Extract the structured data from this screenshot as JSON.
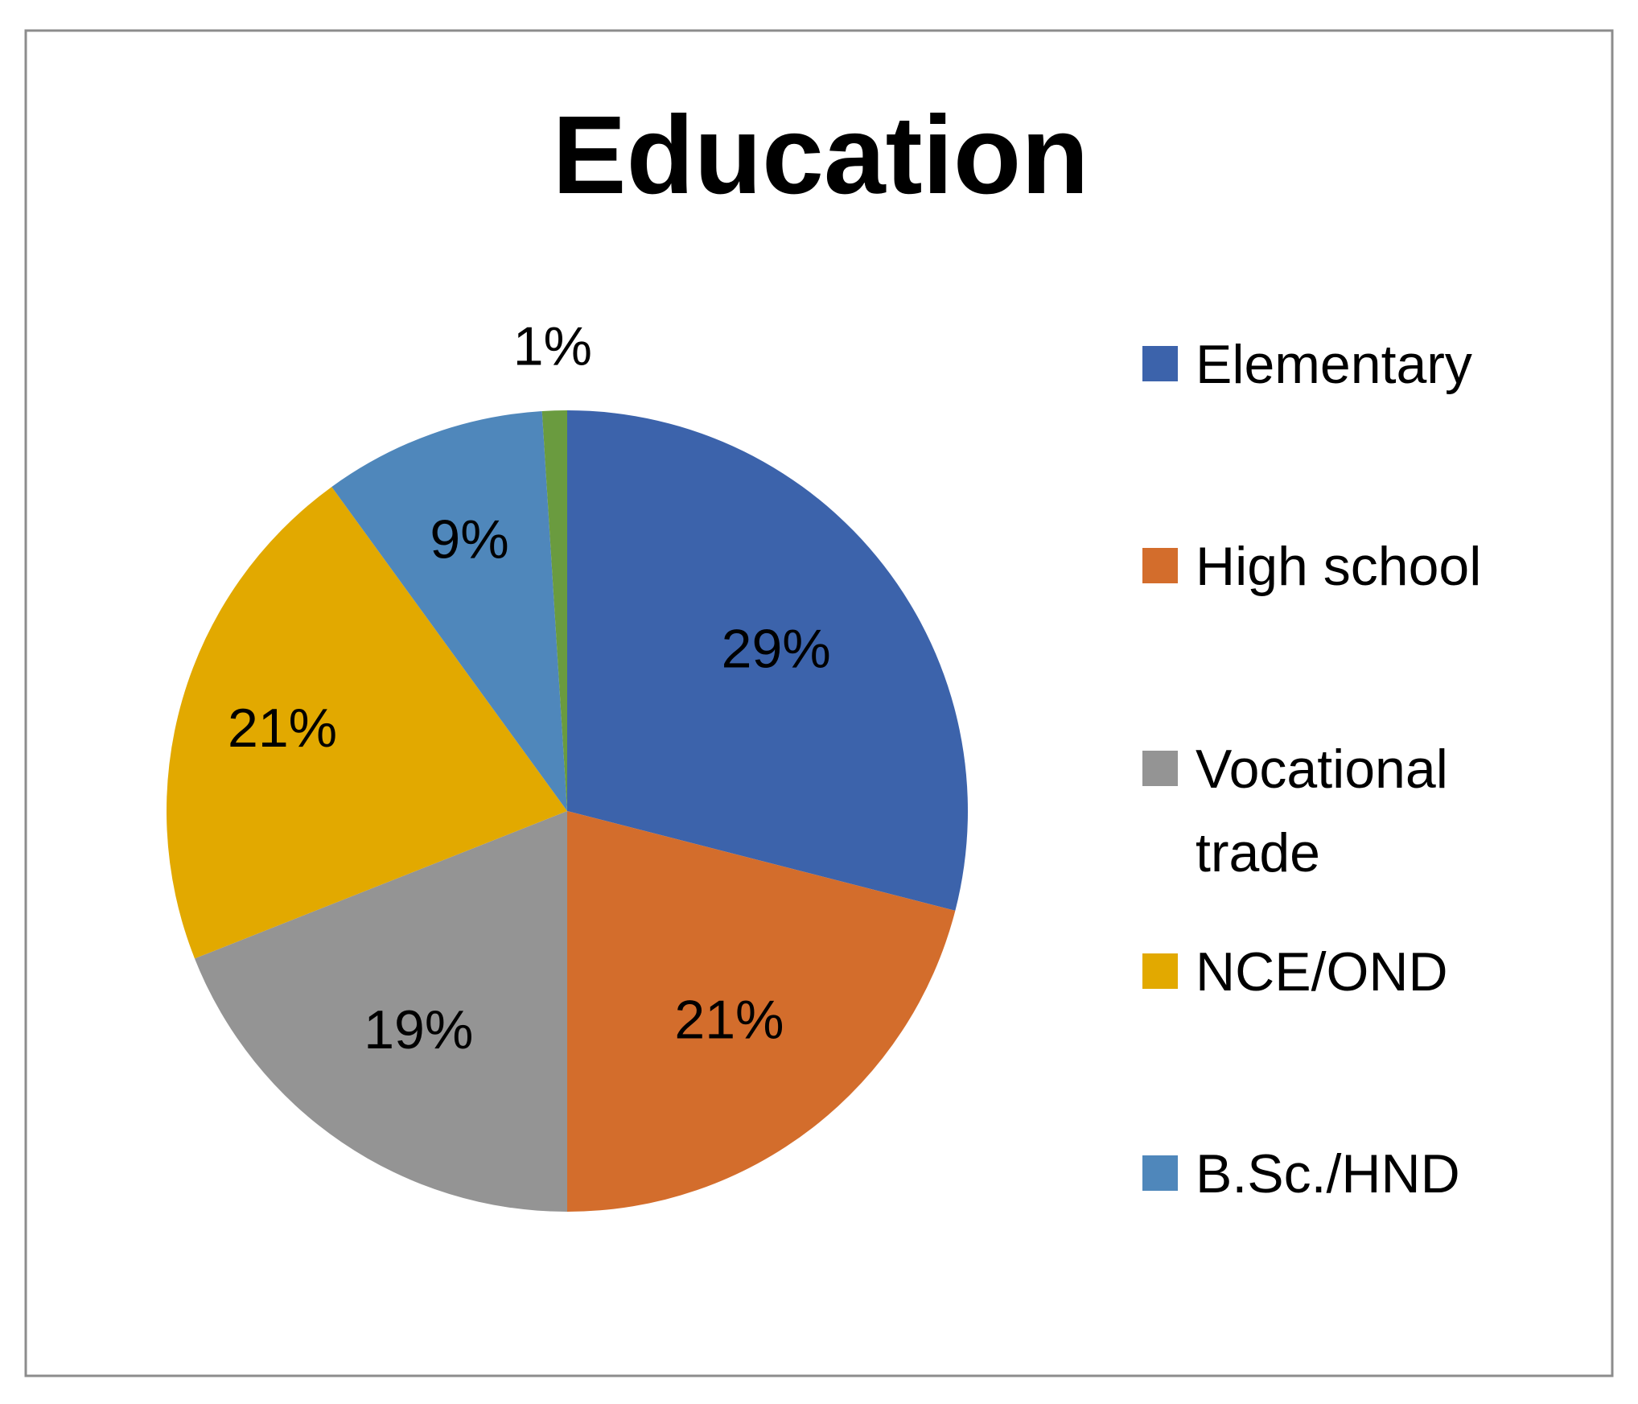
{
  "chart_data": {
    "type": "pie",
    "title": "Education",
    "categories": [
      "Elementary",
      "High school",
      "Vocational trade",
      "NCE/OND",
      "B.Sc./HND",
      ""
    ],
    "values": [
      29,
      21,
      19,
      21,
      9,
      1
    ],
    "labels": [
      "29%",
      "21%",
      "19%",
      "21%",
      "9%",
      "1%"
    ],
    "colors": [
      "#3C63AB",
      "#D36D2C",
      "#949494",
      "#E2A900",
      "#4F87BB",
      "#6A9B3F"
    ],
    "legend": {
      "placement": "right",
      "entries": [
        {
          "label": "Elementary",
          "color": "#3C63AB"
        },
        {
          "label": "High school",
          "color": "#D36D2C"
        },
        {
          "label": "Vocational trade",
          "color": "#949494"
        },
        {
          "label": "NCE/OND",
          "color": "#E2A900"
        },
        {
          "label": "B.Sc./HND",
          "color": "#4F87BB"
        }
      ]
    }
  }
}
